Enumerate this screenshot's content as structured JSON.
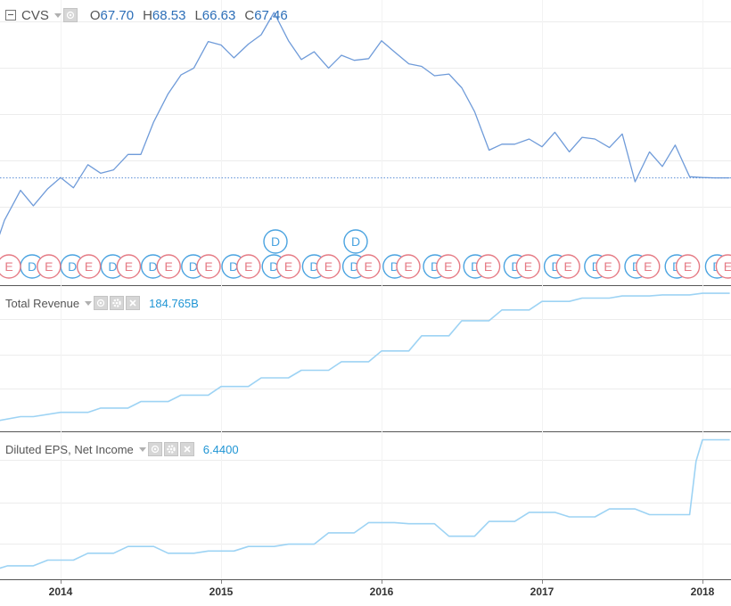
{
  "main_pane": {
    "symbol": "CVS",
    "ohlc": [
      {
        "key": "O",
        "value": "67.70"
      },
      {
        "key": "H",
        "value": "68.53"
      },
      {
        "key": "L",
        "value": "66.63"
      },
      {
        "key": "C",
        "value": "67.46"
      }
    ],
    "event_markers": {
      "dividend_label": "D",
      "earnings_label": "E"
    }
  },
  "revenue_pane": {
    "label": "Total Revenue",
    "value": "184.765B"
  },
  "eps_pane": {
    "label": "Diluted EPS, Net Income",
    "value": "6.4400"
  },
  "x_axis": {
    "ticks": [
      {
        "label": "2014",
        "t": 2014.0
      },
      {
        "label": "2015",
        "t": 2015.0
      },
      {
        "label": "2016",
        "t": 2016.0
      },
      {
        "label": "2017",
        "t": 2017.0
      },
      {
        "label": "2018",
        "t": 2018.0
      }
    ]
  },
  "colors": {
    "price_line": "#6f9bd9",
    "indicator_line": "#9dd3f4",
    "grid": "#ececec",
    "dividend_marker": "#4aa3e0",
    "earnings_marker": "#e57a84",
    "axis_text": "#333333"
  },
  "chart_data": [
    {
      "type": "line",
      "title": "CVS",
      "series": [
        {
          "name": "CVS",
          "x": [
            2013.55,
            2013.65,
            2013.75,
            2013.83,
            2013.92,
            2014.0,
            2014.08,
            2014.17,
            2014.25,
            2014.33,
            2014.42,
            2014.5,
            2014.58,
            2014.67,
            2014.75,
            2014.83,
            2014.92,
            2015.0,
            2015.08,
            2015.17,
            2015.25,
            2015.33,
            2015.42,
            2015.5,
            2015.58,
            2015.67,
            2015.75,
            2015.83,
            2015.92,
            2016.0,
            2016.08,
            2016.17,
            2016.25,
            2016.33,
            2016.42,
            2016.5,
            2016.58,
            2016.67,
            2016.75,
            2016.83,
            2016.92,
            2017.0,
            2017.08,
            2017.17,
            2017.25,
            2017.33,
            2017.42,
            2017.5,
            2017.58,
            2017.67,
            2017.75,
            2017.83,
            2017.92,
            2018.0,
            2018.08,
            2018.17
          ],
          "values": [
            57.0,
            62.5,
            66.0,
            64.2,
            66.2,
            67.5,
            66.3,
            69.0,
            68.0,
            68.4,
            70.2,
            70.2,
            74.0,
            77.3,
            79.5,
            80.3,
            83.4,
            83.0,
            81.5,
            83.1,
            84.2,
            86.8,
            83.5,
            81.3,
            82.2,
            80.3,
            81.8,
            81.2,
            81.4,
            83.5,
            82.2,
            80.8,
            80.5,
            79.4,
            79.6,
            78.0,
            75.2,
            70.7,
            71.4,
            71.4,
            72.0,
            71.1,
            72.8,
            70.5,
            72.2,
            72.0,
            71.0,
            72.6,
            67.0,
            70.5,
            68.8,
            71.3,
            67.6,
            67.5,
            67.46,
            67.46
          ]
        }
      ]
    },
    {
      "type": "line",
      "title": "Total Revenue",
      "series": [
        {
          "name": "Total Revenue",
          "x": [
            2013.55,
            2013.6,
            2013.75,
            2013.83,
            2014.0,
            2014.17,
            2014.25,
            2014.42,
            2014.5,
            2014.67,
            2014.75,
            2014.92,
            2015.0,
            2015.17,
            2015.25,
            2015.42,
            2015.5,
            2015.67,
            2015.75,
            2015.92,
            2016.0,
            2016.17,
            2016.25,
            2016.42,
            2016.5,
            2016.67,
            2016.75,
            2016.92,
            2017.0,
            2017.17,
            2017.25,
            2017.42,
            2017.5,
            2017.67,
            2017.75,
            2017.92,
            2018.0,
            2018.17
          ],
          "values": [
            125.5,
            125.5,
            127.5,
            127.5,
            129.5,
            129.5,
            131.5,
            131.5,
            134.5,
            134.5,
            137.5,
            137.5,
            141.5,
            141.5,
            145.5,
            145.5,
            149.0,
            149.0,
            153.0,
            153.0,
            158.0,
            158.0,
            165.0,
            165.0,
            172.0,
            172.0,
            177.0,
            177.0,
            181.0,
            181.0,
            182.5,
            182.5,
            183.5,
            183.5,
            184.0,
            184.0,
            184.765,
            184.765
          ]
        }
      ]
    },
    {
      "type": "line",
      "title": "Diluted EPS, Net Income",
      "series": [
        {
          "name": "Diluted EPS, Net Income",
          "x": [
            2013.55,
            2013.6,
            2013.67,
            2013.83,
            2013.92,
            2014.08,
            2014.17,
            2014.33,
            2014.42,
            2014.58,
            2014.67,
            2014.83,
            2014.92,
            2015.08,
            2015.17,
            2015.33,
            2015.42,
            2015.58,
            2015.67,
            2015.83,
            2015.92,
            2016.08,
            2016.17,
            2016.33,
            2016.42,
            2016.58,
            2016.67,
            2016.83,
            2016.92,
            2017.08,
            2017.17,
            2017.33,
            2017.42,
            2017.58,
            2017.67,
            2017.83,
            2017.92,
            2017.96,
            2018.0,
            2018.17
          ],
          "values": [
            0.75,
            0.75,
            0.9,
            0.9,
            1.15,
            1.15,
            1.45,
            1.45,
            1.75,
            1.75,
            1.45,
            1.45,
            1.55,
            1.55,
            1.75,
            1.75,
            1.85,
            1.85,
            2.35,
            2.35,
            2.8,
            2.8,
            2.75,
            2.75,
            2.2,
            2.2,
            2.85,
            2.85,
            3.25,
            3.25,
            3.05,
            3.05,
            3.4,
            3.4,
            3.15,
            3.15,
            3.15,
            5.5,
            6.44,
            6.44
          ]
        }
      ]
    }
  ]
}
